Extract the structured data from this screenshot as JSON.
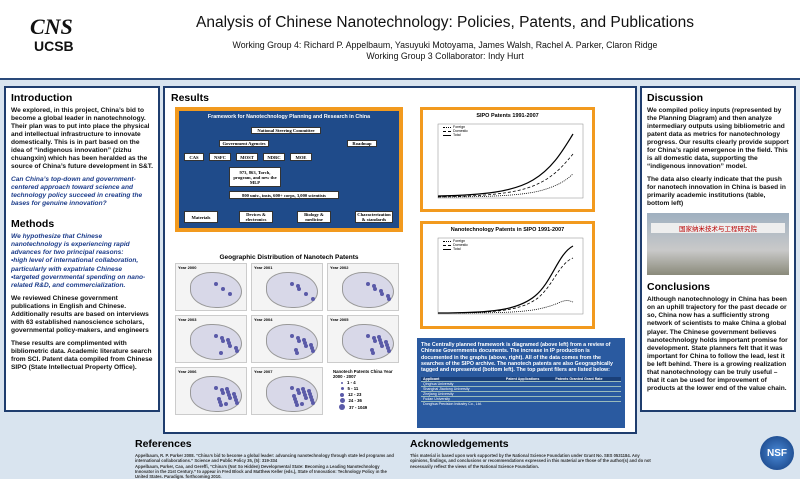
{
  "header": {
    "logo_top": "CNS",
    "logo_bottom": "UCSB",
    "title": "Analysis of Chinese Nanotechnology: Policies, Patents, and Publications",
    "authors": "Working Group 4: Richard P. Appelbaum, Yasuyuki Motoyama, James Walsh, Rachel A. Parker, Claron Ridge",
    "collaborator": "Working Group 3 Collaborator: Indy Hurt"
  },
  "introduction": {
    "heading": "Introduction",
    "body": "We explored, in this project, China’s bid to become a global leader in nanotechnology.  Their plan was to put into place the physical and intellectual infrastructure to innovate domestically. This is in part based on the idea of “indigenous innovation” (zizhu chuangxin) which has been heralded as the source of China’s future development in S&T.",
    "question": "Can China’s top-down and government-centered approach toward science and technology policy succeed in creating the bases for genuine innovation?"
  },
  "methods": {
    "heading": "Methods",
    "hypothesis": "We hypothesize that Chinese nanotechnology is experiencing rapid advances for two principal reasons:",
    "bullets": [
      "•high level of international collaboration, particularly with expatriate Chinese",
      "•targeted governmental spending on nano-related R&D, and commercialization."
    ],
    "body1": "We reviewed Chinese government publications in English and Chinese. Additionally results are based on interviews with 63 established nanoscience scholars, governmental policy-makers, and engineers",
    "body2": "These results are complimented with bibliometric data.  Academic literature search from SCI.  Patent data compiled from Chinese SIPO (State Intellectual Property Office)."
  },
  "results": {
    "heading": "Results",
    "framework": {
      "title": "Framework for Nanotechnology Planning and Research in China",
      "nodes": [
        "National Steering Committee",
        "Government Agencies",
        "Roadmap",
        "CAS",
        "NSFC",
        "MOST",
        "NDRC",
        "MOE",
        "973, 863, Torch, program, and new the MLP",
        "800 univ., insts, 600+ corps, 3,000 scientists",
        "Materials",
        "Devices & electronics",
        "Biology & medicine",
        "Characterization & standards"
      ]
    },
    "map": {
      "title": "Geographic Distribution of Nanotech Patents",
      "years": [
        "Year 2000",
        "Year 2001",
        "Year 2002",
        "Year 2003",
        "Year 2004",
        "Year 2005",
        "Year 2006",
        "Year 2007"
      ],
      "legend_title": "Nanotech Patents China Year 2000 - 2007",
      "legend_items": [
        "1 - 4",
        "5 - 11",
        "12 - 23",
        "24 - 36",
        "37 - 1049"
      ]
    },
    "sipo_chart": {
      "title": "SIPO Patents 1991-2007",
      "legend": [
        "Foreign",
        "Domestic",
        "Total"
      ]
    },
    "nano_chart": {
      "title": "Nanotechnology Patents in SIPO 1991-2007",
      "legend": [
        "Foreign",
        "Domestic",
        "Total"
      ]
    },
    "summary": "The Centrally planned framework is diagramed (above left) from a review of Chinese Governments documents.  The increase in IP production is documented in the graphs (above, right). All of the data comes from the searches of the SIPO archive.  The nanotech patents are also Geographically tagged and represented (bottom left).  The top patent filers are listed below:",
    "table": {
      "headers": [
        "Applicant",
        "Patent Applications",
        "Patents Granted Grant Rate"
      ],
      "rows": [
        [
          "Qinghua University"
        ],
        [
          "Shanghai Jiaotong University"
        ],
        [
          "Zhejiang University"
        ],
        [
          "Fudan University"
        ],
        [
          "Donghua Precision Industry Co., Ltd."
        ]
      ]
    }
  },
  "discussion": {
    "heading": "Discussion",
    "body1": "We compiled policy inputs (represented by the Planning Diagram) and then analyze intermediary outputs using bibliometric and patent data as metrics for nanotechnology progress. Our results clearly provide support for China’s rapid emergence in the field. This is all domestic data, supporting the “indigenous innovation” model.",
    "body2": "The data also clearly indicate that the push for nanotech innovation in China is based in primarily academic institutions (table, bottom left)",
    "photo_sign": "国家纳米技术与工程研究院"
  },
  "conclusions": {
    "heading": "Conclusions",
    "body": "Although nanotechnology in China has been on an uphill trajectory for the past decade or so, China now has a sufficiently strong network of scientists to make China a global player. The Chinese government believes nanotechnology holds important promise for development. State planners felt that it was important for China to follow the lead, lest it be left behind. There is a growing realization that nanotechnology can be truly useful – that it can be used for improvement of products at the lower end of the value chain."
  },
  "references": {
    "heading": "References",
    "items": [
      "Appelbaum, R. P. Parker 2008. “China’s bid to become a global leader: advancing nanotechnology through state led programs and international collaborations.” Science and Public Policy 35, (5): 319-334",
      "Appelbaum, Parker, Cao, and Gereffi, “China’s (Not So Hidden) Developmental State: Becoming a Leading Nanotechnology Innovator in the 21st Century.” to appear in Fred Block and Matthew Keller (eds.), State of Innovation: Technology Policy in the United States. Paradigm. forthcoming 2010."
    ]
  },
  "acknowledgements": {
    "heading": "Acknowledgements",
    "body": "This material is based upon work supported by the National Science Foundation under Grant No. SES 0531184. Any opinions, findings, and conclusions or recommendations expressed in this material are those of the author(s) and do not necessarily reflect the views of the National Science Foundation.",
    "logo": "NSF"
  }
}
